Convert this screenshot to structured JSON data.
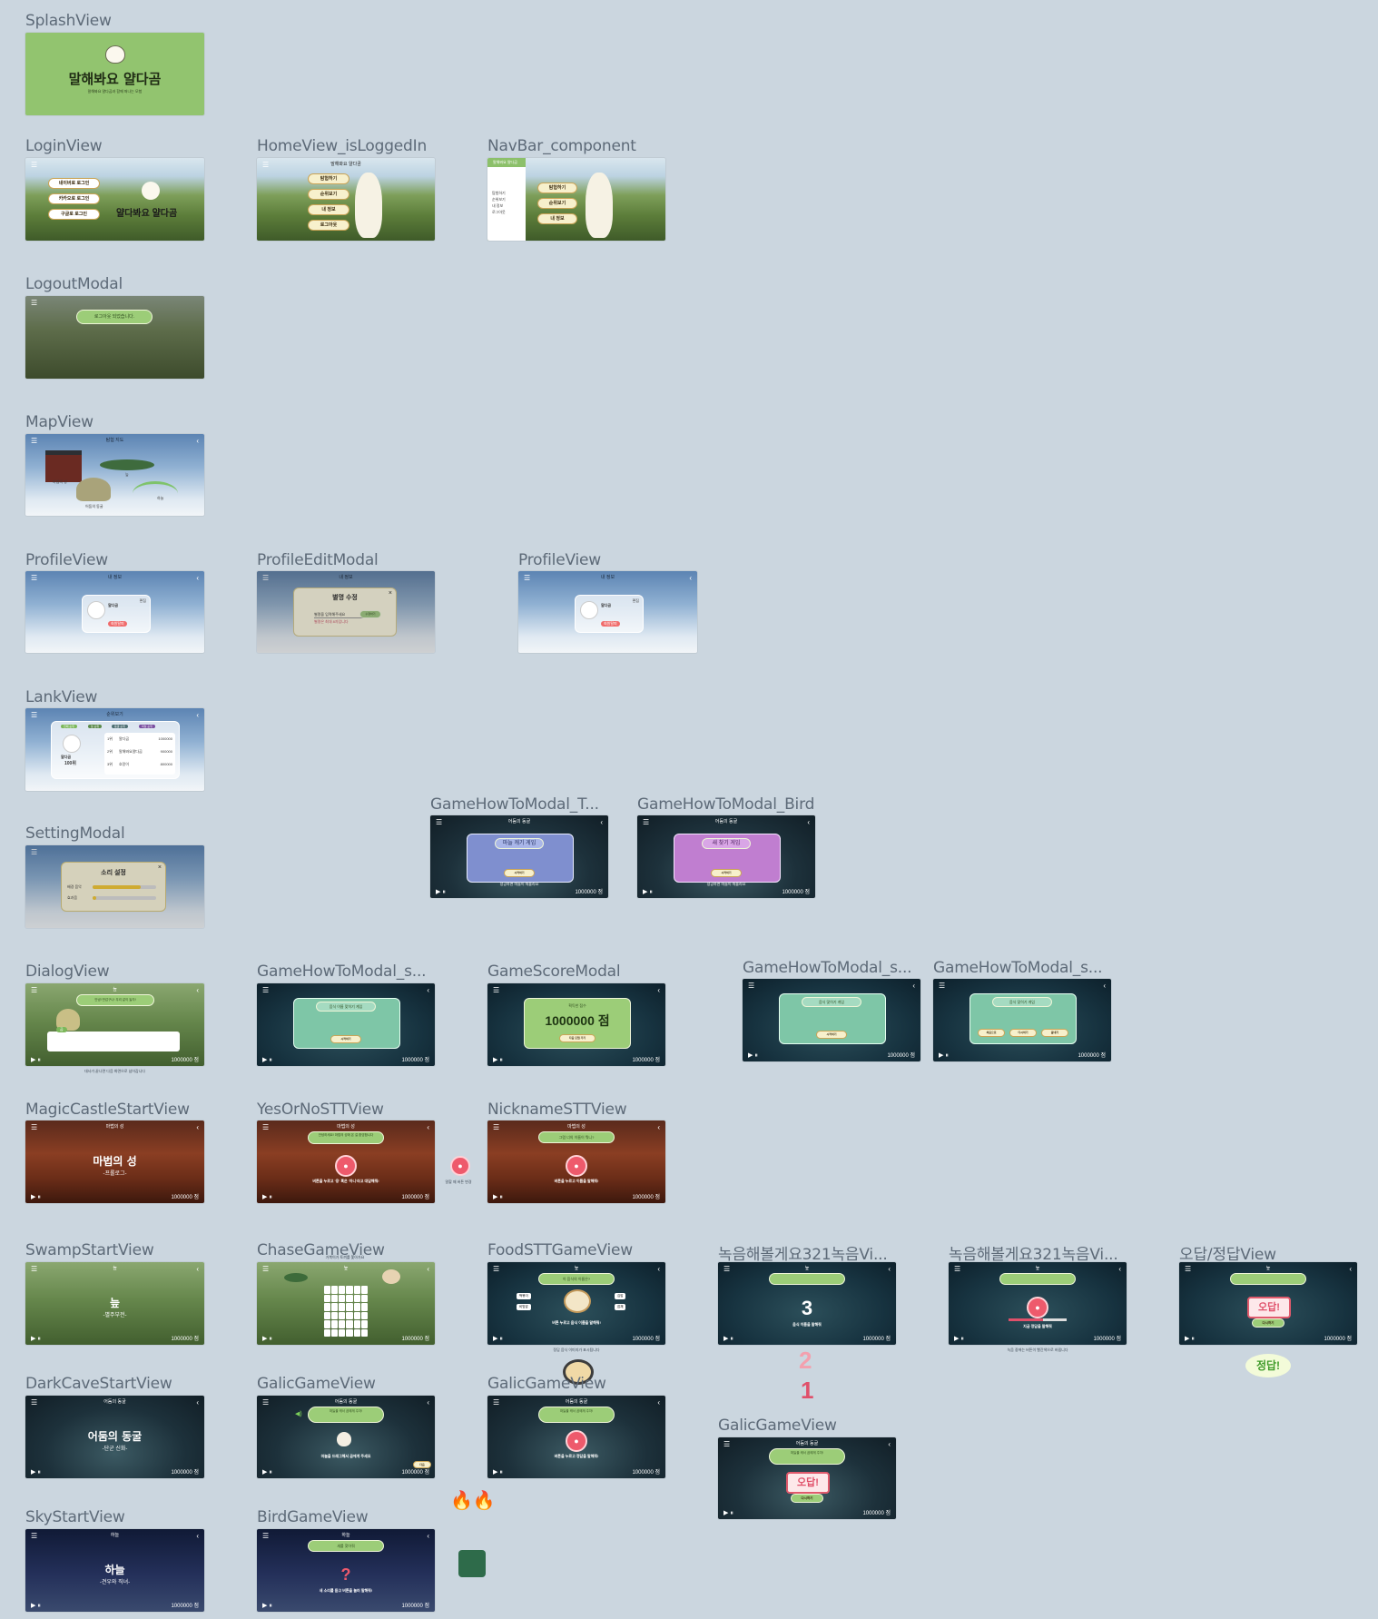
{
  "frames": {
    "splash": {
      "label": "SplashView",
      "title": "말해봐요 얄다곰",
      "subtitle": "말해봐요 얄다곰과 함께 떠나는 모험"
    },
    "login": {
      "label": "LoginView",
      "buttons": [
        "네이버로 로그인",
        "카카오로 로그인",
        "구글로 로그인"
      ],
      "logo": "얄다봐요 얄다곰"
    },
    "home": {
      "label": "HomeView_isLoggedIn",
      "header": "말해봐요 얄다곰",
      "buttons": [
        "탐험하기",
        "순위보기",
        "내 정보",
        "로그아웃"
      ]
    },
    "navbar": {
      "label": "NavBar_component",
      "brand": "말해봐요 얄다곰",
      "items": [
        "탐험하기",
        "순위보기",
        "내 정보",
        "로그아웃"
      ],
      "buttons": [
        "탐험하기",
        "순위보기",
        "내 정보"
      ]
    },
    "logout": {
      "label": "LogoutModal",
      "message": "로그아웃 되었습니다."
    },
    "map": {
      "label": "MapView",
      "title": "탐험 지도",
      "places": [
        "마법의 성",
        "어둠의 동굴",
        "늪",
        "하늘"
      ]
    },
    "profile1": {
      "label": "ProfileView",
      "title": "내 정보",
      "name": "얄다곰",
      "edit": "편집",
      "delete": "회원탈퇴"
    },
    "profileEdit": {
      "label": "ProfileEditModal",
      "title": "내 정보",
      "modal_title": "별명 수정",
      "placeholder": "별명을 입력해주세요",
      "confirm": "수정하기",
      "hint": "별명은 최대 8자입니다"
    },
    "profile2": {
      "label": "ProfileView",
      "title": "내 정보",
      "name": "얄다곰",
      "edit": "편집",
      "delete": "회원탈퇴"
    },
    "rank": {
      "label": "LankView",
      "title": "순위보기",
      "tabs": [
        "전체 순위",
        "늪 순위",
        "동굴 순위",
        "하늘 순위"
      ],
      "me": "얄다곰",
      "my_rank": "100위",
      "rows": [
        {
          "rank": "1위",
          "name": "얄다곰",
          "score": "1000000"
        },
        {
          "rank": "2위",
          "name": "말해봐요얄다곰",
          "score": "900000"
        },
        {
          "rank": "3위",
          "name": "호랑이",
          "score": "800000"
        }
      ]
    },
    "setting": {
      "label": "SettingModal",
      "title": "소리 설정",
      "rows": [
        "배경 음악",
        "효과음"
      ],
      "levels": [
        0.75,
        0.05
      ]
    },
    "howToT": {
      "label": "GameHowToModal_T...",
      "top": "어둠의 동굴",
      "title": "마늘 캐기 게임",
      "start": "시작하기",
      "bottom": "성공하면 마늘이 떠올라요",
      "score": "1000000 점"
    },
    "howToBird": {
      "label": "GameHowToModal_Bird",
      "top": "어둠의 동굴",
      "title": "새 찾기 게임",
      "start": "시작하기",
      "bottom": "성공하면 마늘이 떠올라요",
      "score": "1000000 점"
    },
    "dialog": {
      "label": "DialogView",
      "top": "늪",
      "speech": "안녕! 반갑구나! 우리 같이 놀자!",
      "speaker": "곰",
      "score": "1000000 점",
      "caption": "대사가 끝나면 다음 화면으로 넘어갑니다"
    },
    "howToS": {
      "label": "GameHowToModal_s...",
      "title": "음식 이름 맞히기 게임",
      "start": "시작하기",
      "score": "1000000 점"
    },
    "scoreModal": {
      "label": "GameScoreModal",
      "caption": "획득한 점수",
      "score_value": "1000000 점",
      "button": "다음 모험 가기",
      "score": "1000000 점"
    },
    "howToS2": {
      "label": "GameHowToModal_s...",
      "title": "음식 맞히기 게임",
      "start": "시작하기",
      "score": "1000000 점"
    },
    "howToS3": {
      "label": "GameHowToModal_s...",
      "title": "음식 맞히기 게임",
      "buttons": [
        "처음으로",
        "다시하기",
        "끝내기"
      ],
      "score": "1000000 점"
    },
    "magicStart": {
      "label": "MagicCastleStartView",
      "top": "마법의 성",
      "title": "마법의 성",
      "sub": "-프롤로그-",
      "score": "1000000 점"
    },
    "yesNo": {
      "label": "YesOrNoSTTView",
      "top": "마법의 성",
      "prompt": "안녕하세요! 마법의 성에 온 걸 환영합니다",
      "instr": "버튼을 누르고 '응' 혹은 '아니'라고 대답해줘!",
      "score": "1000000 점",
      "side": "말할 때 버튼 변경"
    },
    "nickname": {
      "label": "NicknameSTTView",
      "top": "마법의 성",
      "prompt": "그럼 너의 이름이 뭐니?",
      "instr": "버튼을 누르고 이름을 말해줘!",
      "score": "1000000 점"
    },
    "swampStart": {
      "label": "SwampStartView",
      "top": "늪",
      "title": "늪",
      "sub": "-별주부전-",
      "score": "1000000 점"
    },
    "chase": {
      "label": "ChaseGameView",
      "top": "늪",
      "note": "거북이가 토끼를 쫓아가요",
      "score": "1000000 점"
    },
    "food": {
      "label": "FoodSTTGameView",
      "top": "늪",
      "prompt": "이 음식의 이름은?",
      "instr": "버튼 누르고 음식 이름을 말해줘!",
      "options": [
        "떡볶이",
        "비빔밥",
        "김밥",
        "잡채"
      ],
      "score": "1000000 점",
      "caption": "정답 음식 이미지가 표시됩니다"
    },
    "record1": {
      "label": "녹음해볼게요321녹음Vi...",
      "top": "늪",
      "count": "3",
      "instr": "음식 이름을 말해줘",
      "score": "1000000 점",
      "count2": "2",
      "count1": "1"
    },
    "record2": {
      "label": "녹음해볼게요321녹음Vi...",
      "top": "늪",
      "instr": "지금 정답을 말해줘",
      "score": "1000000 점",
      "caption": "녹음 중에는 버튼이 빨간색으로 바뀝니다"
    },
    "answer": {
      "label": "오답/정답View",
      "top": "늪",
      "wrong": "오답!",
      "retry": "다시하기",
      "score": "1000000 점",
      "correct": "정답!"
    },
    "darkCave": {
      "label": "DarkCaveStartView",
      "top": "어둠의 동굴",
      "title": "어둠의 동굴",
      "sub": "-단군 신화-",
      "score": "1000000 점"
    },
    "galic1": {
      "label": "GalicGameView",
      "top": "어둠의 동굴",
      "prompt": "마늘을 캐서 곰에게 주자!",
      "instr": "마늘을 드래그해서 곰에게 주세요",
      "next": "다음",
      "score": "1000000 점"
    },
    "galic2": {
      "label": "GalicGameView",
      "top": "어둠의 동굴",
      "prompt": "마늘을 캐서 곰에게 주자!",
      "instr": "버튼을 누르고 정답을 말해줘!",
      "score": "1000000 점"
    },
    "galic3": {
      "label": "GalicGameView",
      "top": "어둠의 동굴",
      "prompt": "마늘을 캐서 곰에게 주자!",
      "wrong": "오답!",
      "retry": "다시하기",
      "score": "1000000 점"
    },
    "skyStart": {
      "label": "SkyStartView",
      "top": "하늘",
      "title": "하늘",
      "sub": "-견우와 직녀-",
      "score": "1000000 점"
    },
    "bird": {
      "label": "BirdGameView",
      "top": "하늘",
      "prompt": "새를 찾아줘",
      "mark": "?",
      "instr": "새 소리를 듣고 버튼을 눌러 말해줘!",
      "score": "1000000 점"
    }
  },
  "colors": {
    "canvas": "#cbd6df",
    "label": "#5d6a78",
    "pill": "#9ccd78",
    "mic": "#ee5a6c",
    "accent_red": "#e0506a"
  }
}
